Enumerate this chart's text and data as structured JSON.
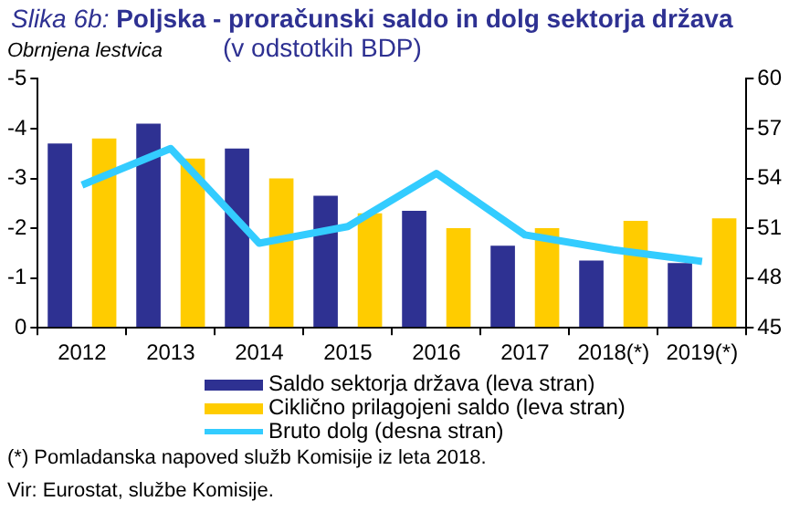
{
  "chart_data": {
    "type": "bar",
    "title": "Slika 6b: Poljska - proračunski saldo in dolg sektorja država",
    "subtitle": "(v odstotkih BDP)",
    "ylabel": "Obrnjena lestvica",
    "categories": [
      "2012",
      "2013",
      "2014",
      "2015",
      "2016",
      "2017",
      "2018(*)",
      "2019(*)"
    ],
    "series": [
      {
        "name": "Saldo sektorja država (leva stran)",
        "color": "#2e3192",
        "values": [
          -3.7,
          -4.1,
          -3.6,
          -2.65,
          -2.35,
          -1.65,
          -1.35,
          -1.3
        ]
      },
      {
        "name": "Ciklično prilagojeni saldo (leva stran)",
        "color": "#ffcc00",
        "values": [
          -3.8,
          -3.4,
          -3.0,
          -2.3,
          -2.0,
          -2.0,
          -2.15,
          -2.2
        ]
      },
      {
        "name": "Bruto dolg (desna stran)",
        "type": "line",
        "axis": "y2",
        "color": "#33ccff",
        "values": [
          53.6,
          55.8,
          50.1,
          51.1,
          54.3,
          50.6,
          49.7,
          49.0
        ]
      }
    ],
    "ylim": [
      0,
      -5
    ],
    "yticks": [
      0,
      -1,
      -2,
      -3,
      -4,
      -5
    ],
    "y2lim": [
      45,
      60
    ],
    "y2ticks": [
      45,
      48,
      51,
      54,
      57,
      60
    ],
    "grid": false,
    "legend": "bottom",
    "marker": "none",
    "line_style": "solid",
    "annotations": [
      "(*) Pomladanska napoved služb Komisije iz leta 2018.",
      "Vir: Eurostat, službe Komisije."
    ]
  }
}
